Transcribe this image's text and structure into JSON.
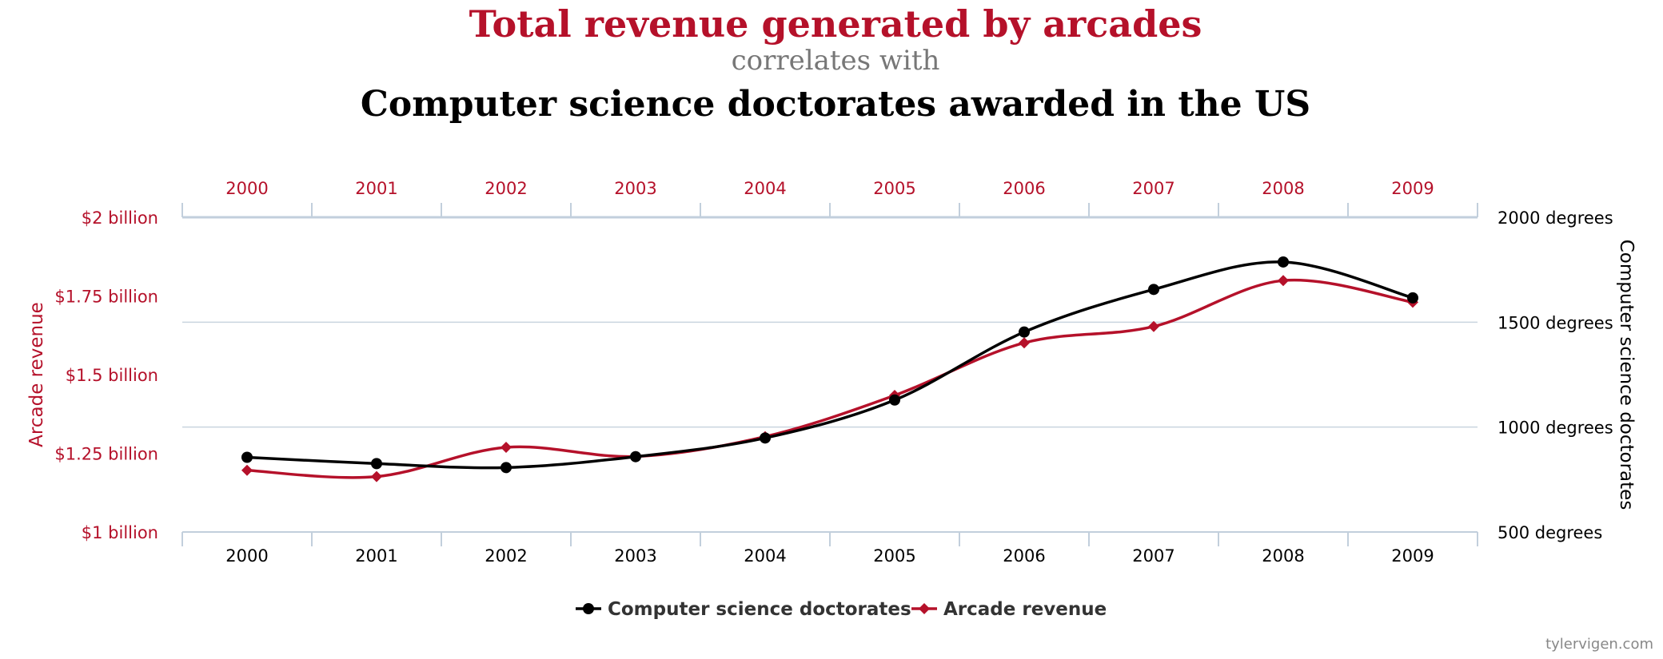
{
  "titles": {
    "title": "Total revenue generated by arcades",
    "connector": "correlates with",
    "subtitle": "Computer science doctorates awarded in the US"
  },
  "colors": {
    "red": "#b5112a",
    "black": "#000000",
    "grid": "#c9d4df",
    "axis": "#c2cfdc",
    "gray": "#777777",
    "watermark": "#888888"
  },
  "watermark": "tylervigen.com",
  "chart_data": {
    "type": "line",
    "categories": [
      "2000",
      "2001",
      "2002",
      "2003",
      "2004",
      "2005",
      "2006",
      "2007",
      "2008",
      "2009"
    ],
    "y_left": {
      "label": "Arcade revenue",
      "ticks": [
        "$1 billion",
        "$1.25 billion",
        "$1.5 billion",
        "$1.75 billion",
        "$2 billion"
      ],
      "tick_values": [
        1.0,
        1.25,
        1.5,
        1.75,
        2.0
      ],
      "min": 1.0,
      "max": 2.0,
      "unit": "$ billion"
    },
    "y_right": {
      "label": "Computer science doctorates",
      "ticks": [
        "500 degrees",
        "1000 degrees",
        "1500 degrees",
        "2000 degrees"
      ],
      "tick_values": [
        500,
        1000,
        1500,
        2000
      ],
      "min": 500,
      "max": 2000,
      "unit": "degrees"
    },
    "series": [
      {
        "name": "Computer science doctorates",
        "axis": "right",
        "marker": "circle",
        "color": "#000000",
        "values": [
          856,
          826,
          807,
          859,
          948,
          1129,
          1453,
          1656,
          1787,
          1616
        ]
      },
      {
        "name": "Arcade revenue",
        "axis": "left",
        "marker": "diamond",
        "color": "#b5112a",
        "values": [
          1.196,
          1.176,
          1.269,
          1.24,
          1.303,
          1.434,
          1.601,
          1.653,
          1.799,
          1.73
        ]
      }
    ],
    "grid": "horizontal",
    "legend_position": "bottom-center"
  }
}
